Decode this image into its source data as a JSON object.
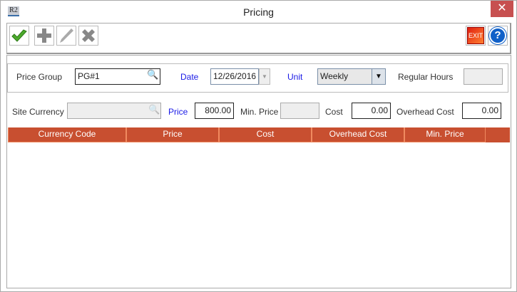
{
  "window": {
    "title": "Pricing",
    "app_icon_text": "R2"
  },
  "toolbar": {
    "save": "check-icon",
    "add": "plus-icon",
    "edit": "pencil-icon",
    "delete": "x-icon",
    "exit_label": "EXIT",
    "help": "question-icon"
  },
  "form": {
    "price_group": {
      "label": "Price Group",
      "value": "PG#1"
    },
    "date": {
      "label": "Date",
      "value": "12/26/2016"
    },
    "unit": {
      "label": "Unit",
      "value": "Weekly"
    },
    "regular_hours": {
      "label": "Regular Hours",
      "value": ""
    },
    "site_currency": {
      "label": "Site Currency",
      "value": ""
    },
    "price": {
      "label": "Price",
      "value": "800.00"
    },
    "min_price": {
      "label": "Min. Price",
      "value": ""
    },
    "cost": {
      "label": "Cost",
      "value": "0.00"
    },
    "overhead_cost": {
      "label": "Overhead Cost",
      "value": "0.00"
    }
  },
  "table": {
    "columns": [
      "Currency Code",
      "Price",
      "Cost",
      "Overhead Cost",
      "Min. Price"
    ],
    "rows": []
  },
  "colors": {
    "header": "#c84f30",
    "link_label": "#1a1ae6",
    "close": "#c75050"
  }
}
